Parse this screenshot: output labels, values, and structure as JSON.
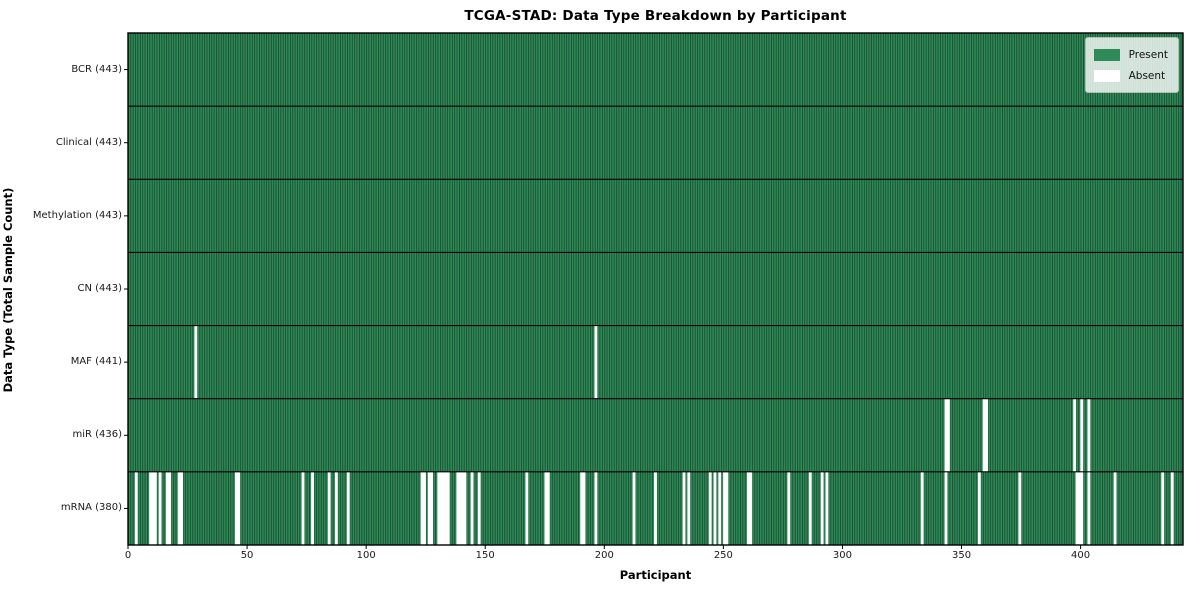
{
  "title": "TCGA-STAD: Data Type Breakdown by Participant",
  "axes": {
    "xlabel": "Participant",
    "ylabel": "Data Type (Total Sample Count)"
  },
  "legend": {
    "present_label": "Present",
    "absent_label": "Absent"
  },
  "colors": {
    "present": "#2e8b57",
    "absent": "#ffffff",
    "cell_edge": "#16402a",
    "row_separator": "#000000",
    "plot_border": "#000000",
    "tick": "#000000"
  },
  "chart_data": {
    "type": "heatmap",
    "title": "TCGA-STAD: Data Type Breakdown by Participant",
    "xlabel": "Participant",
    "ylabel": "Data Type (Total Sample Count)",
    "legend_entries": [
      "Present",
      "Absent"
    ],
    "legend_position": "upper right",
    "n_participants": 443,
    "x_ticks": [
      0,
      50,
      100,
      150,
      200,
      250,
      300,
      350,
      400
    ],
    "x_range": [
      0,
      443
    ],
    "grid": false,
    "rows": [
      {
        "label": "BCR (443)",
        "data_type": "BCR",
        "present_count": 443,
        "absent_participants": []
      },
      {
        "label": "Clinical (443)",
        "data_type": "Clinical",
        "present_count": 443,
        "absent_participants": []
      },
      {
        "label": "Methylation (443)",
        "data_type": "Methylation",
        "present_count": 443,
        "absent_participants": []
      },
      {
        "label": "CN (443)",
        "data_type": "CN",
        "present_count": 443,
        "absent_participants": []
      },
      {
        "label": "MAF (441)",
        "data_type": "MAF",
        "present_count": 441,
        "absent_participants": [
          28,
          196
        ]
      },
      {
        "label": "miR (436)",
        "data_type": "miR",
        "present_count": 436,
        "absent_participants": [
          343,
          344,
          359,
          360,
          397,
          400,
          403
        ]
      },
      {
        "label": "mRNA (380)",
        "data_type": "mRNA",
        "present_count": 380,
        "absent_participants": [
          3,
          9,
          10,
          11,
          13,
          16,
          17,
          21,
          22,
          45,
          46,
          73,
          77,
          84,
          87,
          92,
          123,
          124,
          126,
          127,
          130,
          131,
          132,
          133,
          134,
          138,
          139,
          140,
          141,
          144,
          147,
          167,
          175,
          176,
          190,
          191,
          196,
          212,
          221,
          233,
          235,
          244,
          246,
          248,
          250,
          251,
          260,
          261,
          277,
          286,
          291,
          293,
          333,
          343,
          357,
          374,
          398,
          399,
          400,
          403,
          414,
          434,
          438
        ]
      }
    ]
  }
}
